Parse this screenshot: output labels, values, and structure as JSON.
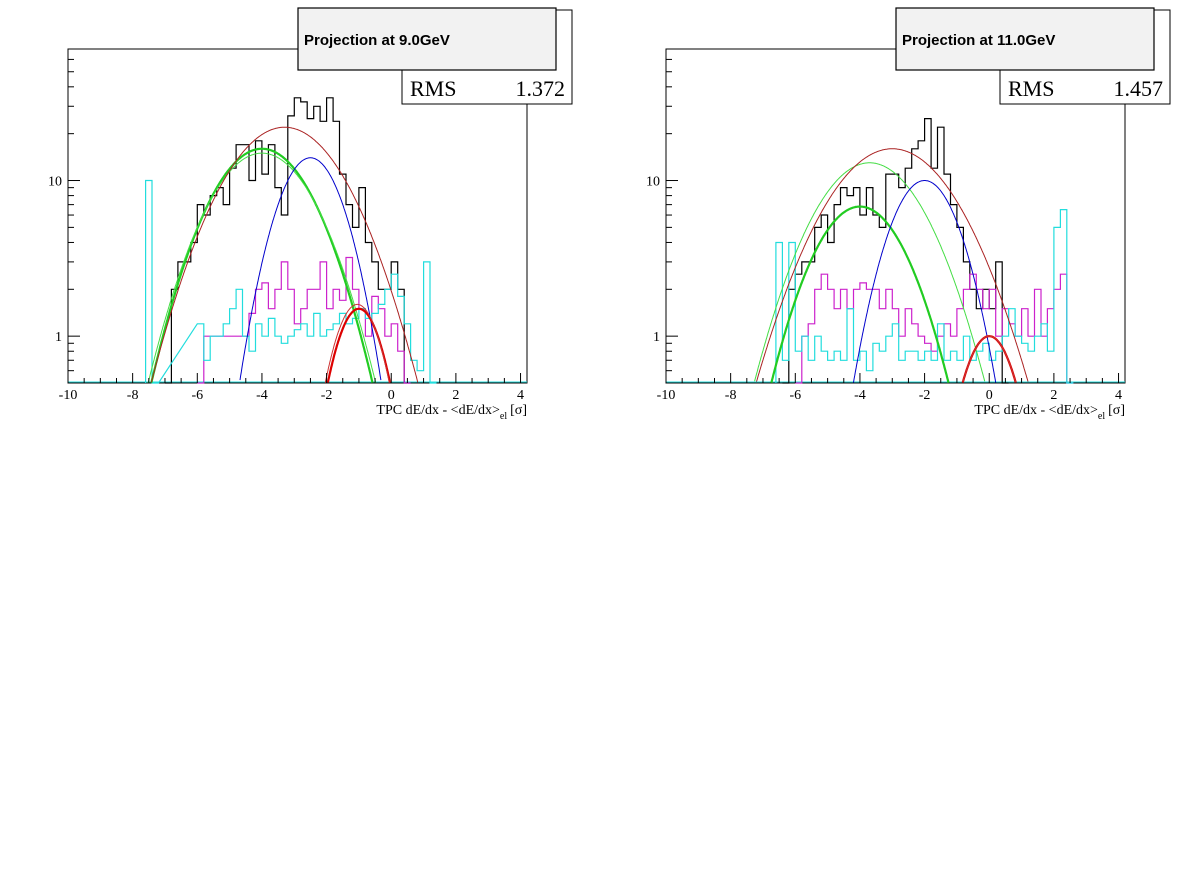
{
  "chart_data": [
    {
      "type": "line",
      "title": "Projection at 9.0GeV",
      "stats": {
        "label": "RMS",
        "value": "1.372"
      },
      "xlabel": "TPC dE/dx - <dE/dx>",
      "xlabel_sub": "el",
      "xlabel_unit": "[σ]",
      "xlim": [
        -10,
        4.2
      ],
      "ylim": [
        0.5,
        70
      ],
      "yscale": "log",
      "xticks": [
        -10,
        -8,
        -6,
        -4,
        -2,
        0,
        2,
        4
      ],
      "yticks": [
        1,
        10
      ],
      "grid": false,
      "hist_series": [
        {
          "name": "black",
          "color": "#000000",
          "bins": [
            [
              -7.0,
              0
            ],
            [
              -6.8,
              2
            ],
            [
              -6.6,
              3
            ],
            [
              -6.4,
              3
            ],
            [
              -6.2,
              4
            ],
            [
              -6.0,
              7
            ],
            [
              -5.8,
              6
            ],
            [
              -5.6,
              8
            ],
            [
              -5.4,
              9
            ],
            [
              -5.2,
              7
            ],
            [
              -5.0,
              12
            ],
            [
              -4.8,
              17
            ],
            [
              -4.6,
              17
            ],
            [
              -4.4,
              10
            ],
            [
              -4.2,
              18
            ],
            [
              -4.0,
              11
            ],
            [
              -3.8,
              17
            ],
            [
              -3.6,
              9
            ],
            [
              -3.4,
              6
            ],
            [
              -3.2,
              26
            ],
            [
              -3.0,
              34
            ],
            [
              -2.8,
              32
            ],
            [
              -2.6,
              25
            ],
            [
              -2.4,
              30
            ],
            [
              -2.2,
              24
            ],
            [
              -2.0,
              34
            ],
            [
              -1.8,
              24
            ],
            [
              -1.6,
              11
            ],
            [
              -1.4,
              7
            ],
            [
              -1.2,
              5
            ],
            [
              -1.0,
              9
            ],
            [
              -0.8,
              4
            ],
            [
              -0.6,
              3
            ],
            [
              -0.4,
              2
            ],
            [
              -0.2,
              2
            ],
            [
              0.0,
              3
            ],
            [
              0.2,
              2
            ],
            [
              0.4,
              0
            ]
          ]
        },
        {
          "name": "magenta",
          "color": "#cc22cc",
          "bins": [
            [
              -6.0,
              0
            ],
            [
              -5.8,
              1
            ],
            [
              -5.6,
              1
            ],
            [
              -5.4,
              1
            ],
            [
              -5.2,
              1
            ],
            [
              -5.0,
              1
            ],
            [
              -4.8,
              1
            ],
            [
              -4.6,
              1
            ],
            [
              -4.4,
              1.4
            ],
            [
              -4.2,
              2
            ],
            [
              -4.0,
              2.2
            ],
            [
              -3.8,
              1.5
            ],
            [
              -3.6,
              2
            ],
            [
              -3.4,
              3
            ],
            [
              -3.2,
              2
            ],
            [
              -3.0,
              1.2
            ],
            [
              -2.8,
              1.5
            ],
            [
              -2.6,
              2
            ],
            [
              -2.4,
              2
            ],
            [
              -2.2,
              3
            ],
            [
              -2.0,
              1.5
            ],
            [
              -1.8,
              2
            ],
            [
              -1.6,
              1.7
            ],
            [
              -1.4,
              3.2
            ],
            [
              -1.2,
              2
            ],
            [
              -1.0,
              1.5
            ],
            [
              -0.8,
              1
            ],
            [
              -0.6,
              1.8
            ],
            [
              -0.4,
              1.5
            ],
            [
              -0.2,
              1
            ],
            [
              0.0,
              1.2
            ],
            [
              0.2,
              0.8
            ],
            [
              0.4,
              0
            ]
          ]
        },
        {
          "name": "cyan",
          "color": "#22dddd",
          "bins": [
            [
              -7.6,
              10
            ],
            [
              -7.4,
              0
            ],
            [
              -6.0,
              1.2
            ],
            [
              -5.8,
              0.7
            ],
            [
              -5.6,
              1
            ],
            [
              -5.4,
              1
            ],
            [
              -5.2,
              1.2
            ],
            [
              -5.0,
              1.5
            ],
            [
              -4.8,
              2
            ],
            [
              -4.6,
              1
            ],
            [
              -4.4,
              0.8
            ],
            [
              -4.2,
              1.2
            ],
            [
              -4.0,
              1
            ],
            [
              -3.8,
              1.3
            ],
            [
              -3.6,
              1
            ],
            [
              -3.4,
              0.9
            ],
            [
              -3.2,
              1
            ],
            [
              -3.0,
              1.1
            ],
            [
              -2.8,
              1.2
            ],
            [
              -2.6,
              1
            ],
            [
              -2.4,
              1.4
            ],
            [
              -2.2,
              1
            ],
            [
              -2.0,
              1.1
            ],
            [
              -1.8,
              1.2
            ],
            [
              -1.6,
              1.4
            ],
            [
              -1.4,
              1.2
            ],
            [
              -1.2,
              1.3
            ],
            [
              -1.0,
              1.5
            ],
            [
              -0.8,
              1.3
            ],
            [
              -0.6,
              1.4
            ],
            [
              -0.4,
              1.6
            ],
            [
              -0.2,
              2
            ],
            [
              0.0,
              2.5
            ],
            [
              0.2,
              1.8
            ],
            [
              0.4,
              1.2
            ],
            [
              0.6,
              0.7
            ],
            [
              0.8,
              0.6
            ],
            [
              1.0,
              3
            ],
            [
              1.2,
              0
            ]
          ]
        }
      ],
      "curve_series": [
        {
          "name": "green-thick",
          "color": "#22cc22",
          "width": 2.2,
          "amp": 16,
          "mean": -4.0,
          "sigma": 1.3
        },
        {
          "name": "green-thin",
          "color": "#44dd44",
          "width": 1,
          "amp": 15,
          "mean": -4.0,
          "sigma": 1.35
        },
        {
          "name": "blue",
          "color": "#0000cc",
          "width": 1,
          "amp": 14,
          "mean": -2.5,
          "sigma": 0.85
        },
        {
          "name": "red-thick",
          "color": "#dd0000",
          "width": 2.2,
          "amp": 1.5,
          "mean": -1.0,
          "sigma": 0.65
        },
        {
          "name": "red-thin",
          "color": "#cc3333",
          "width": 1,
          "amp": 1.6,
          "mean": -1.05,
          "sigma": 0.65
        },
        {
          "name": "brown-total",
          "color": "#aa2222",
          "width": 1,
          "amp": 22,
          "mean": -3.3,
          "sigma": 1.5
        }
      ]
    },
    {
      "type": "line",
      "title": "Projection at 11.0GeV",
      "stats": {
        "label": "RMS",
        "value": "1.457"
      },
      "xlabel": "TPC dE/dx - <dE/dx>",
      "xlabel_sub": "el",
      "xlabel_unit": "[σ]",
      "xlim": [
        -10,
        4.2
      ],
      "ylim": [
        0.5,
        70
      ],
      "yscale": "log",
      "xticks": [
        -10,
        -8,
        -6,
        -4,
        -2,
        0,
        2,
        4
      ],
      "yticks": [
        1,
        10
      ],
      "grid": false,
      "hist_series": [
        {
          "name": "black",
          "color": "#000000",
          "bins": [
            [
              -6.4,
              0
            ],
            [
              -6.2,
              2
            ],
            [
              -6.0,
              2.5
            ],
            [
              -5.8,
              3
            ],
            [
              -5.6,
              3
            ],
            [
              -5.4,
              5
            ],
            [
              -5.2,
              6
            ],
            [
              -5.0,
              4
            ],
            [
              -4.8,
              7
            ],
            [
              -4.6,
              9
            ],
            [
              -4.4,
              8
            ],
            [
              -4.2,
              9
            ],
            [
              -4.0,
              6
            ],
            [
              -3.8,
              9
            ],
            [
              -3.6,
              6
            ],
            [
              -3.4,
              5
            ],
            [
              -3.2,
              11
            ],
            [
              -3.0,
              11
            ],
            [
              -2.8,
              9
            ],
            [
              -2.6,
              12
            ],
            [
              -2.4,
              16
            ],
            [
              -2.2,
              18
            ],
            [
              -2.0,
              25
            ],
            [
              -1.8,
              12
            ],
            [
              -1.6,
              22
            ],
            [
              -1.4,
              11
            ],
            [
              -1.2,
              7
            ],
            [
              -1.0,
              5
            ],
            [
              -0.8,
              3
            ],
            [
              -0.6,
              2
            ],
            [
              -0.4,
              1.5
            ],
            [
              -0.2,
              2
            ],
            [
              0.0,
              1.5
            ],
            [
              0.2,
              3
            ],
            [
              0.4,
              0
            ]
          ]
        },
        {
          "name": "magenta",
          "color": "#cc22cc",
          "bins": [
            [
              -6.0,
              0
            ],
            [
              -5.8,
              1
            ],
            [
              -5.6,
              1.2
            ],
            [
              -5.4,
              2
            ],
            [
              -5.2,
              2.5
            ],
            [
              -5.0,
              2
            ],
            [
              -4.8,
              1.5
            ],
            [
              -4.6,
              2
            ],
            [
              -4.4,
              1.5
            ],
            [
              -4.2,
              2
            ],
            [
              -4.0,
              2.2
            ],
            [
              -3.8,
              2
            ],
            [
              -3.6,
              2
            ],
            [
              -3.4,
              1.5
            ],
            [
              -3.2,
              2
            ],
            [
              -3.0,
              1.5
            ],
            [
              -2.8,
              1
            ],
            [
              -2.6,
              1.5
            ],
            [
              -2.4,
              1.2
            ],
            [
              -2.2,
              1
            ],
            [
              -2.0,
              0.9
            ],
            [
              -1.8,
              0.8
            ],
            [
              -1.6,
              1
            ],
            [
              -1.4,
              1.2
            ],
            [
              -1.2,
              1
            ],
            [
              -1.0,
              1.5
            ],
            [
              -0.8,
              2
            ],
            [
              -0.6,
              2.5
            ],
            [
              -0.4,
              2
            ],
            [
              -0.2,
              1.5
            ],
            [
              0.0,
              2
            ],
            [
              0.2,
              1
            ],
            [
              0.4,
              1.5
            ],
            [
              0.6,
              1.2
            ],
            [
              0.8,
              1
            ],
            [
              1.0,
              1.5
            ],
            [
              1.2,
              1
            ],
            [
              1.4,
              2
            ],
            [
              1.6,
              1
            ],
            [
              1.8,
              1.5
            ],
            [
              2.0,
              2
            ],
            [
              2.2,
              2.5
            ],
            [
              2.4,
              0
            ]
          ]
        },
        {
          "name": "cyan",
          "color": "#22dddd",
          "bins": [
            [
              -6.6,
              4
            ],
            [
              -6.4,
              0.7
            ],
            [
              -6.2,
              4
            ],
            [
              -6.0,
              0.8
            ],
            [
              -5.8,
              1
            ],
            [
              -5.6,
              0.7
            ],
            [
              -5.4,
              1
            ],
            [
              -5.2,
              0.8
            ],
            [
              -5.0,
              0.7
            ],
            [
              -4.8,
              0.8
            ],
            [
              -4.6,
              0.7
            ],
            [
              -4.4,
              1.5
            ],
            [
              -4.2,
              0.7
            ],
            [
              -4.0,
              0.8
            ],
            [
              -3.8,
              0.6
            ],
            [
              -3.6,
              0.9
            ],
            [
              -3.4,
              0.8
            ],
            [
              -3.2,
              1
            ],
            [
              -3.0,
              1.2
            ],
            [
              -2.8,
              0.7
            ],
            [
              -2.6,
              0.8
            ],
            [
              -2.4,
              0.8
            ],
            [
              -2.2,
              0.7
            ],
            [
              -2.0,
              0.8
            ],
            [
              -1.8,
              0.7
            ],
            [
              -1.6,
              1.2
            ],
            [
              -1.4,
              0.7
            ],
            [
              -1.2,
              0.8
            ],
            [
              -1.0,
              0.7
            ],
            [
              -0.8,
              1
            ],
            [
              -0.6,
              0.7
            ],
            [
              -0.4,
              0.8
            ],
            [
              -0.2,
              0.9
            ],
            [
              0.0,
              0.7
            ],
            [
              0.2,
              0.8
            ],
            [
              0.4,
              1
            ],
            [
              0.6,
              1.5
            ],
            [
              0.8,
              1
            ],
            [
              1.0,
              0.9
            ],
            [
              1.2,
              0.8
            ],
            [
              1.4,
              1
            ],
            [
              1.6,
              1.2
            ],
            [
              1.8,
              0.8
            ],
            [
              2.0,
              5
            ],
            [
              2.2,
              6.5
            ],
            [
              2.4,
              0
            ]
          ]
        }
      ],
      "curve_series": [
        {
          "name": "green-thick",
          "color": "#22cc22",
          "width": 2.2,
          "amp": 6.8,
          "mean": -4.0,
          "sigma": 1.2
        },
        {
          "name": "green-thin",
          "color": "#44dd44",
          "width": 1,
          "amp": 13,
          "mean": -3.7,
          "sigma": 1.4
        },
        {
          "name": "blue",
          "color": "#0000cc",
          "width": 1,
          "amp": 10,
          "mean": -2.0,
          "sigma": 0.9
        },
        {
          "name": "red-thick",
          "color": "#dd0000",
          "width": 2.2,
          "amp": 1.0,
          "mean": 0.0,
          "sigma": 0.7
        },
        {
          "name": "red-thin",
          "color": "#cc3333",
          "width": 1,
          "amp": 1.0,
          "mean": 0.0,
          "sigma": 0.7
        },
        {
          "name": "brown-total",
          "color": "#aa2222",
          "width": 1,
          "amp": 16,
          "mean": -3.0,
          "sigma": 1.6
        }
      ]
    }
  ]
}
